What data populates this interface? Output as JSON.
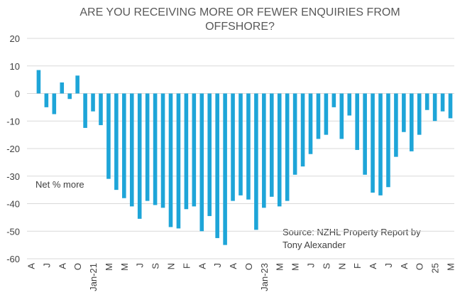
{
  "chart_data": {
    "type": "bar",
    "title": [
      "ARE YOU RECEIVING MORE OR FEWER ENQUIRIES FROM",
      "OFFSHORE?"
    ],
    "annotations": [
      "Net % more",
      "Source: NZHL Property Report by",
      "Tony Alexander"
    ],
    "categories": [
      "A",
      null,
      "J",
      null,
      "A",
      null,
      "O",
      null,
      "Jan-21",
      null,
      "M",
      null,
      "M",
      null,
      "J",
      null,
      "S",
      null,
      "N",
      null,
      "F",
      null,
      "A",
      null,
      "J",
      null,
      "A",
      null,
      "O",
      null,
      "Jan-23",
      null,
      "M",
      null,
      "M",
      null,
      "J",
      null,
      "S",
      null,
      "N",
      null,
      "F",
      null,
      "A",
      null,
      "J",
      null,
      "A",
      null,
      "O",
      null,
      "25",
      null,
      "M"
    ],
    "values": [
      null,
      8.5,
      -5,
      -7.5,
      4,
      -2,
      6.5,
      -12.5,
      -6.5,
      -11.5,
      -31,
      -35,
      -38,
      -41,
      -45.5,
      -39,
      -40.5,
      -41.5,
      -48.5,
      -49,
      -42,
      -41,
      -50,
      -44.5,
      -52.5,
      -55,
      -39,
      -37,
      -38.5,
      -49.5,
      -41.5,
      -37.5,
      -41,
      -39,
      -29.5,
      -26.5,
      -22,
      -16.5,
      -15,
      -5,
      -16.5,
      -8,
      -20.5,
      -29.5,
      -36,
      -37,
      -34,
      -23,
      -14,
      -21,
      -15,
      -6,
      -10,
      -6.5,
      -9
    ],
    "color": "#1ea5d8",
    "ylim": [
      -60,
      20
    ],
    "yticks": [
      -60,
      -50,
      -40,
      -30,
      -20,
      -10,
      0,
      10,
      20
    ],
    "grid": true
  }
}
